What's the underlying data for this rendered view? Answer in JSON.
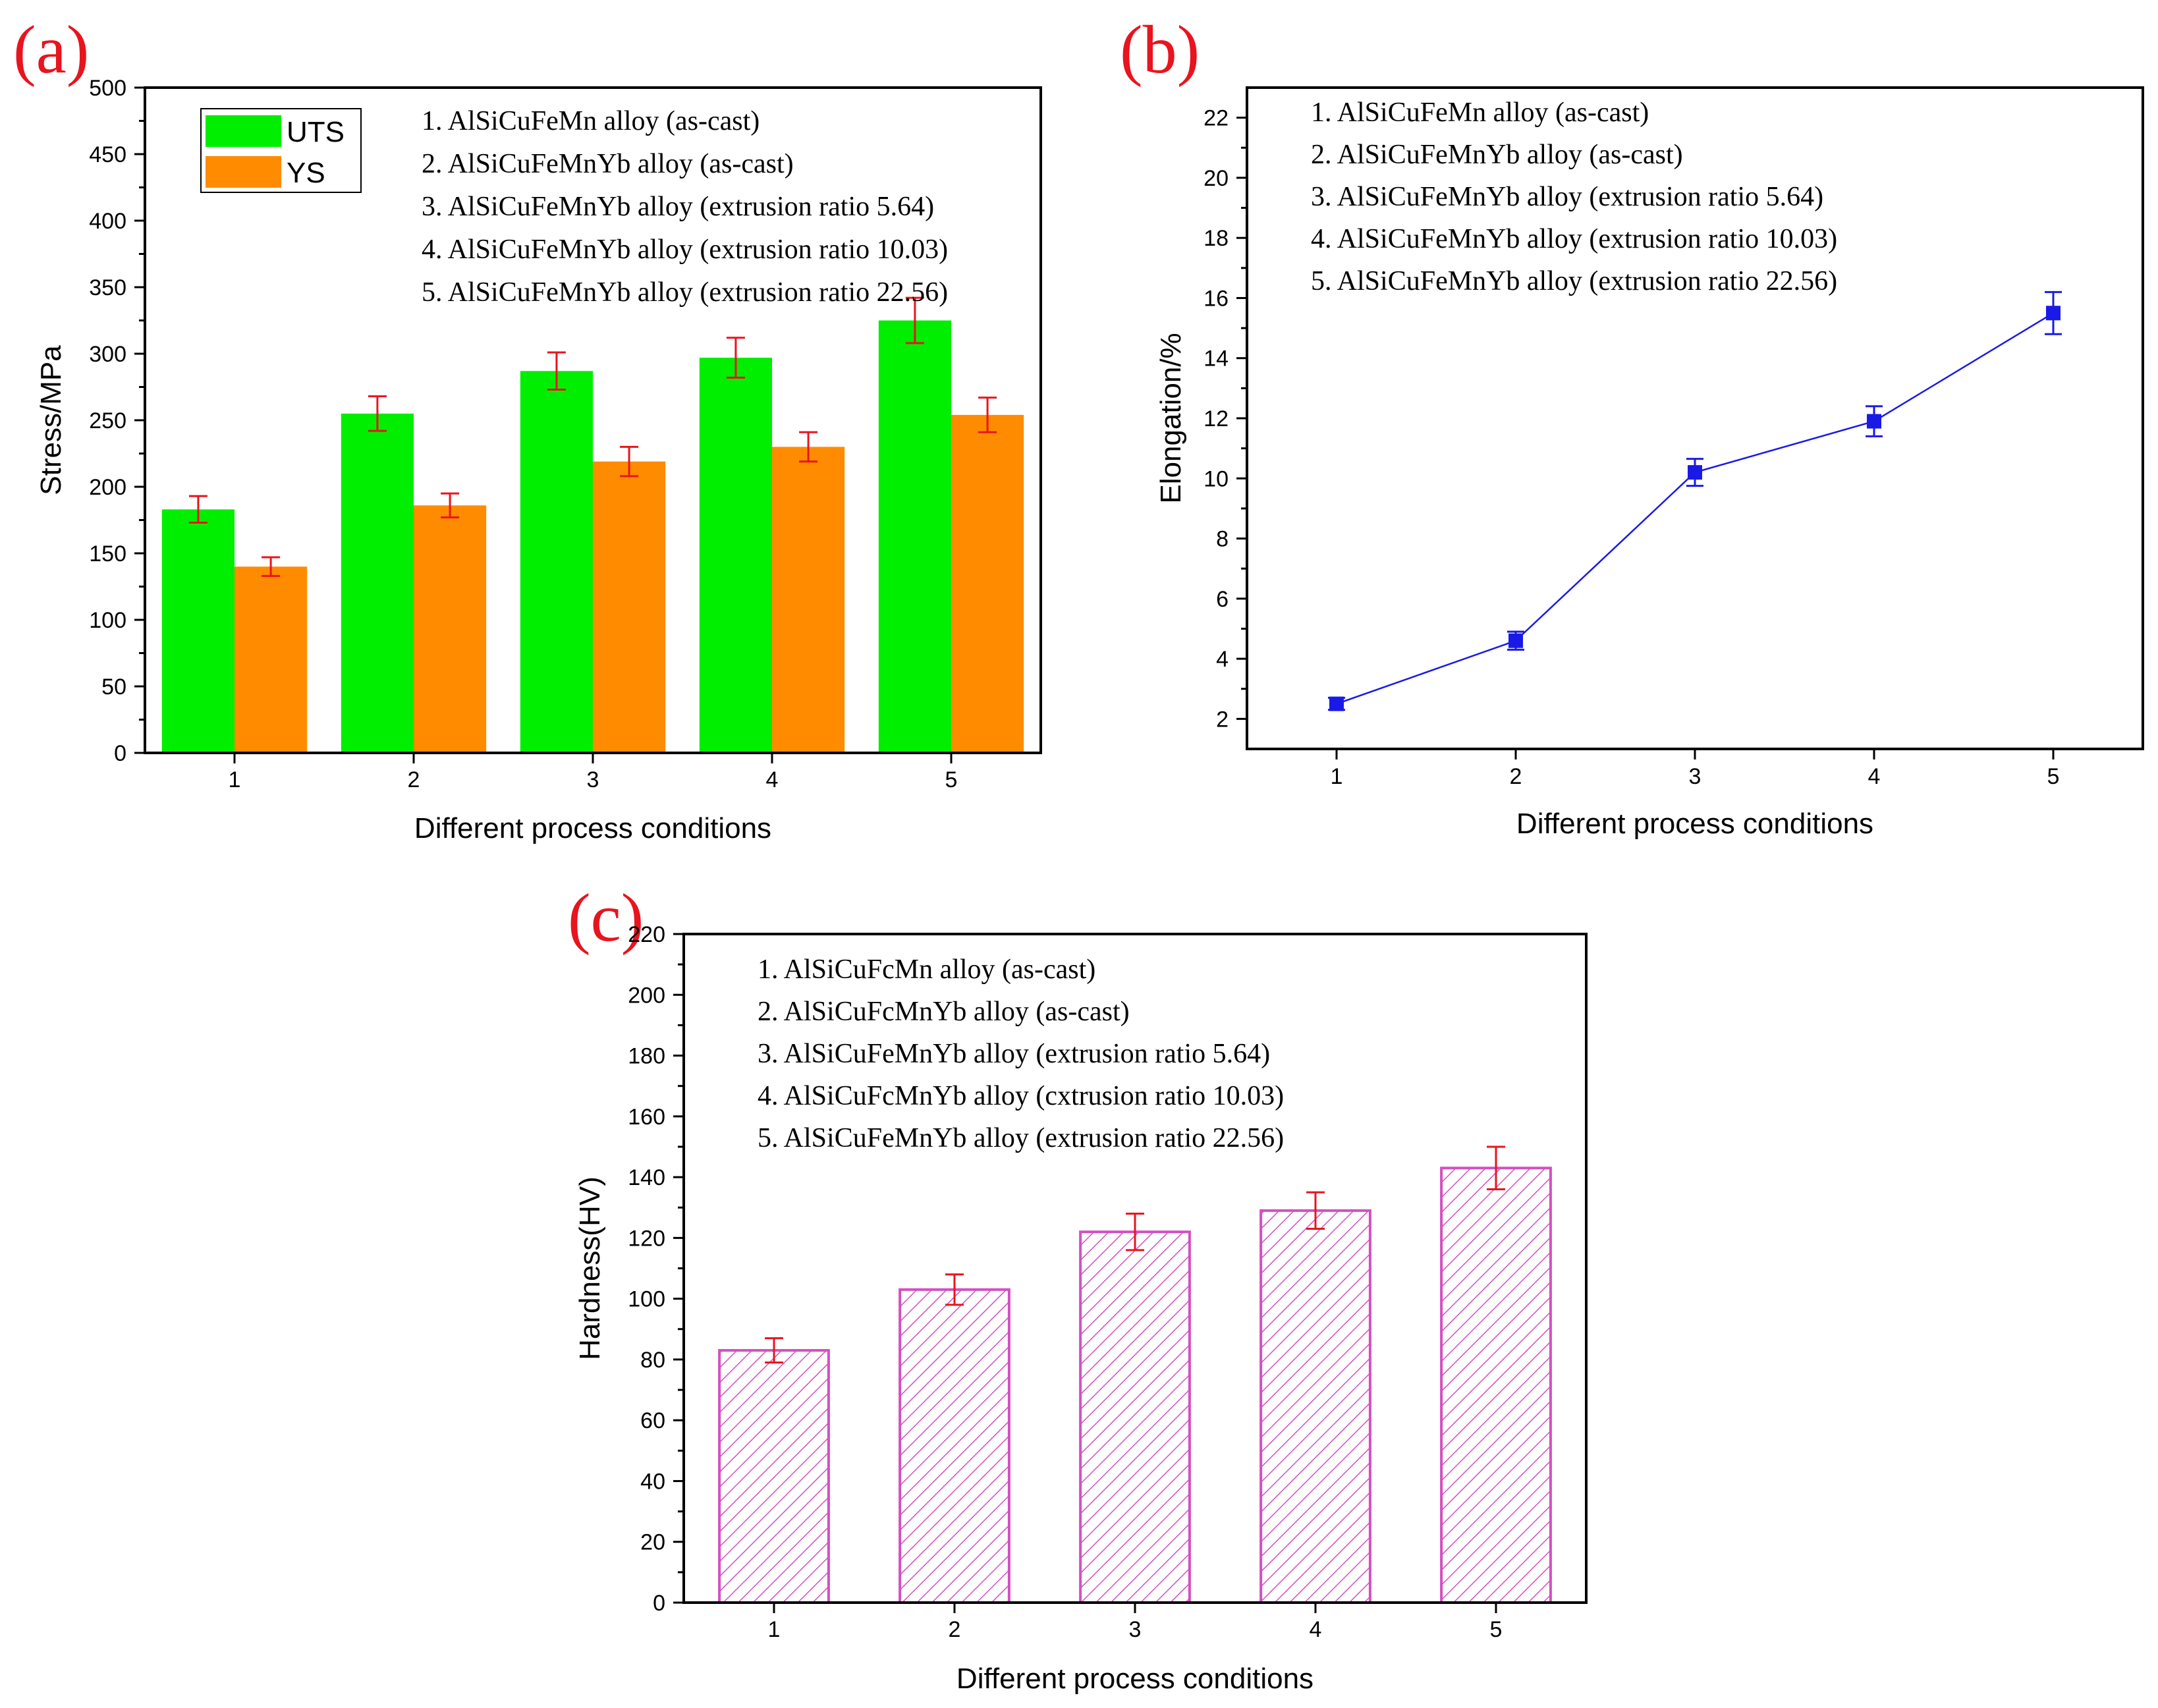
{
  "colors": {
    "uts": "#00ee00",
    "ys": "#ff8c00",
    "error_red": "#e8141e",
    "elongation_line": "#1a1ae6",
    "hardness_pattern": "#d44fc2",
    "label_red": "#e8141e"
  },
  "chart_data": [
    {
      "panel": "(a)",
      "type": "bar",
      "xlabel": "Different process conditions",
      "ylabel": "Stress/MPa",
      "ylim": [
        0,
        500
      ],
      "yticks": [
        0,
        50,
        100,
        150,
        200,
        250,
        300,
        350,
        400,
        450,
        500
      ],
      "categories": [
        "1",
        "2",
        "3",
        "4",
        "5"
      ],
      "series": [
        {
          "name": "UTS",
          "values": [
            183,
            255,
            287,
            297,
            325
          ],
          "errors": [
            10,
            13,
            14,
            15,
            17
          ]
        },
        {
          "name": "YS",
          "values": [
            140,
            186,
            219,
            230,
            254
          ],
          "errors": [
            7,
            9,
            11,
            11,
            13
          ]
        }
      ],
      "legend_position": "top-left",
      "notes": [
        "1. AlSiCuFeMn alloy (as-cast)",
        "2. AlSiCuFeMnYb alloy (as-cast)",
        "3. AlSiCuFeMnYb alloy (extrusion ratio 5.64)",
        "4. AlSiCuFeMnYb alloy (extrusion ratio 10.03)",
        "5. AlSiCuFeMnYb alloy (extrusion ratio 22.56)"
      ]
    },
    {
      "panel": "(b)",
      "type": "line",
      "xlabel": "Different process conditions",
      "ylabel": "Elongation/%",
      "ylim": [
        1,
        23
      ],
      "yticks": [
        2,
        4,
        6,
        8,
        10,
        12,
        14,
        16,
        18,
        20,
        22
      ],
      "categories": [
        "1",
        "2",
        "3",
        "4",
        "5"
      ],
      "series": [
        {
          "values": [
            2.5,
            4.6,
            10.2,
            11.9,
            15.5
          ],
          "errors": [
            0.2,
            0.3,
            0.45,
            0.5,
            0.7
          ]
        }
      ],
      "notes": [
        "1. AlSiCuFeMn alloy (as-cast)",
        "2. AlSiCuFeMnYb alloy (as-cast)",
        "3. AlSiCuFeMnYb alloy (extrusion ratio 5.64)",
        "4. AlSiCuFeMnYb alloy (extrusion ratio 10.03)",
        "5. AlSiCuFeMnYb alloy (extrusion ratio 22.56)"
      ]
    },
    {
      "panel": "(c)",
      "type": "bar",
      "xlabel": "Different process conditions",
      "ylabel": "Hardness(HV)",
      "ylim": [
        0,
        220
      ],
      "yticks": [
        0,
        20,
        40,
        60,
        80,
        100,
        120,
        140,
        160,
        180,
        200,
        220
      ],
      "categories": [
        "1",
        "2",
        "3",
        "4",
        "5"
      ],
      "series": [
        {
          "values": [
            83,
            103,
            122,
            129,
            143
          ],
          "errors": [
            4,
            5,
            6,
            6,
            7
          ]
        }
      ],
      "notes": [
        "1. AlSiCuFcMn alloy (as-cast)",
        "2. AlSiCuFcMnYb alloy (as-cast)",
        "3. AlSiCuFeMnYb alloy (extrusion ratio 5.64)",
        "4. AlSiCuFcMnYb alloy (cxtrusion ratio 10.03)",
        "5. AlSiCuFeMnYb alloy (extrusion ratio 22.56)"
      ]
    }
  ]
}
